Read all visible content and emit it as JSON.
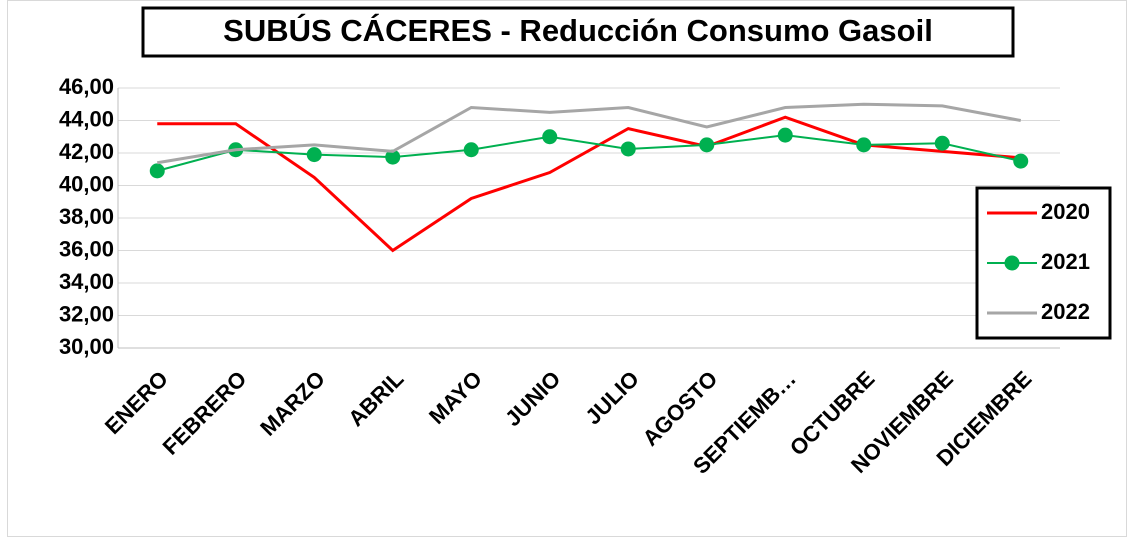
{
  "chart_data": {
    "type": "line",
    "title": "SUBÚS CÁCERES - Reducción Consumo Gasoil",
    "categories": [
      "ENERO",
      "FEBRERO",
      "MARZO",
      "ABRIL",
      "MAYO",
      "JUNIO",
      "JULIO",
      "AGOSTO",
      "SEPTIEMB…",
      "OCTUBRE",
      "NOVIEMBRE",
      "DICIEMBRE"
    ],
    "series": [
      {
        "name": "2020",
        "color": "#ff0000",
        "marker": false,
        "values": [
          43.8,
          43.8,
          40.5,
          36.0,
          39.2,
          40.8,
          43.5,
          42.4,
          44.2,
          42.5,
          42.1,
          41.7
        ]
      },
      {
        "name": "2021",
        "color": "#00b050",
        "marker": true,
        "values": [
          40.9,
          42.2,
          41.9,
          41.75,
          42.2,
          43.0,
          42.25,
          42.5,
          43.1,
          42.5,
          42.6,
          41.5
        ]
      },
      {
        "name": "2022",
        "color": "#a6a6a6",
        "marker": false,
        "values": [
          41.4,
          42.2,
          42.5,
          42.1,
          44.8,
          44.5,
          44.8,
          43.6,
          44.8,
          45.0,
          44.9,
          44.0
        ]
      }
    ],
    "ylim": [
      30,
      46
    ],
    "yticks": [
      {
        "value": 30,
        "label": "30,00"
      },
      {
        "value": 32,
        "label": "32,00"
      },
      {
        "value": 34,
        "label": "34,00"
      },
      {
        "value": 36,
        "label": "36,00"
      },
      {
        "value": 38,
        "label": "38,00"
      },
      {
        "value": 40,
        "label": "40,00"
      },
      {
        "value": 42,
        "label": "42,00"
      },
      {
        "value": 44,
        "label": "44,00"
      },
      {
        "value": 46,
        "label": "46,00"
      }
    ],
    "grid": true,
    "legend": "right"
  }
}
